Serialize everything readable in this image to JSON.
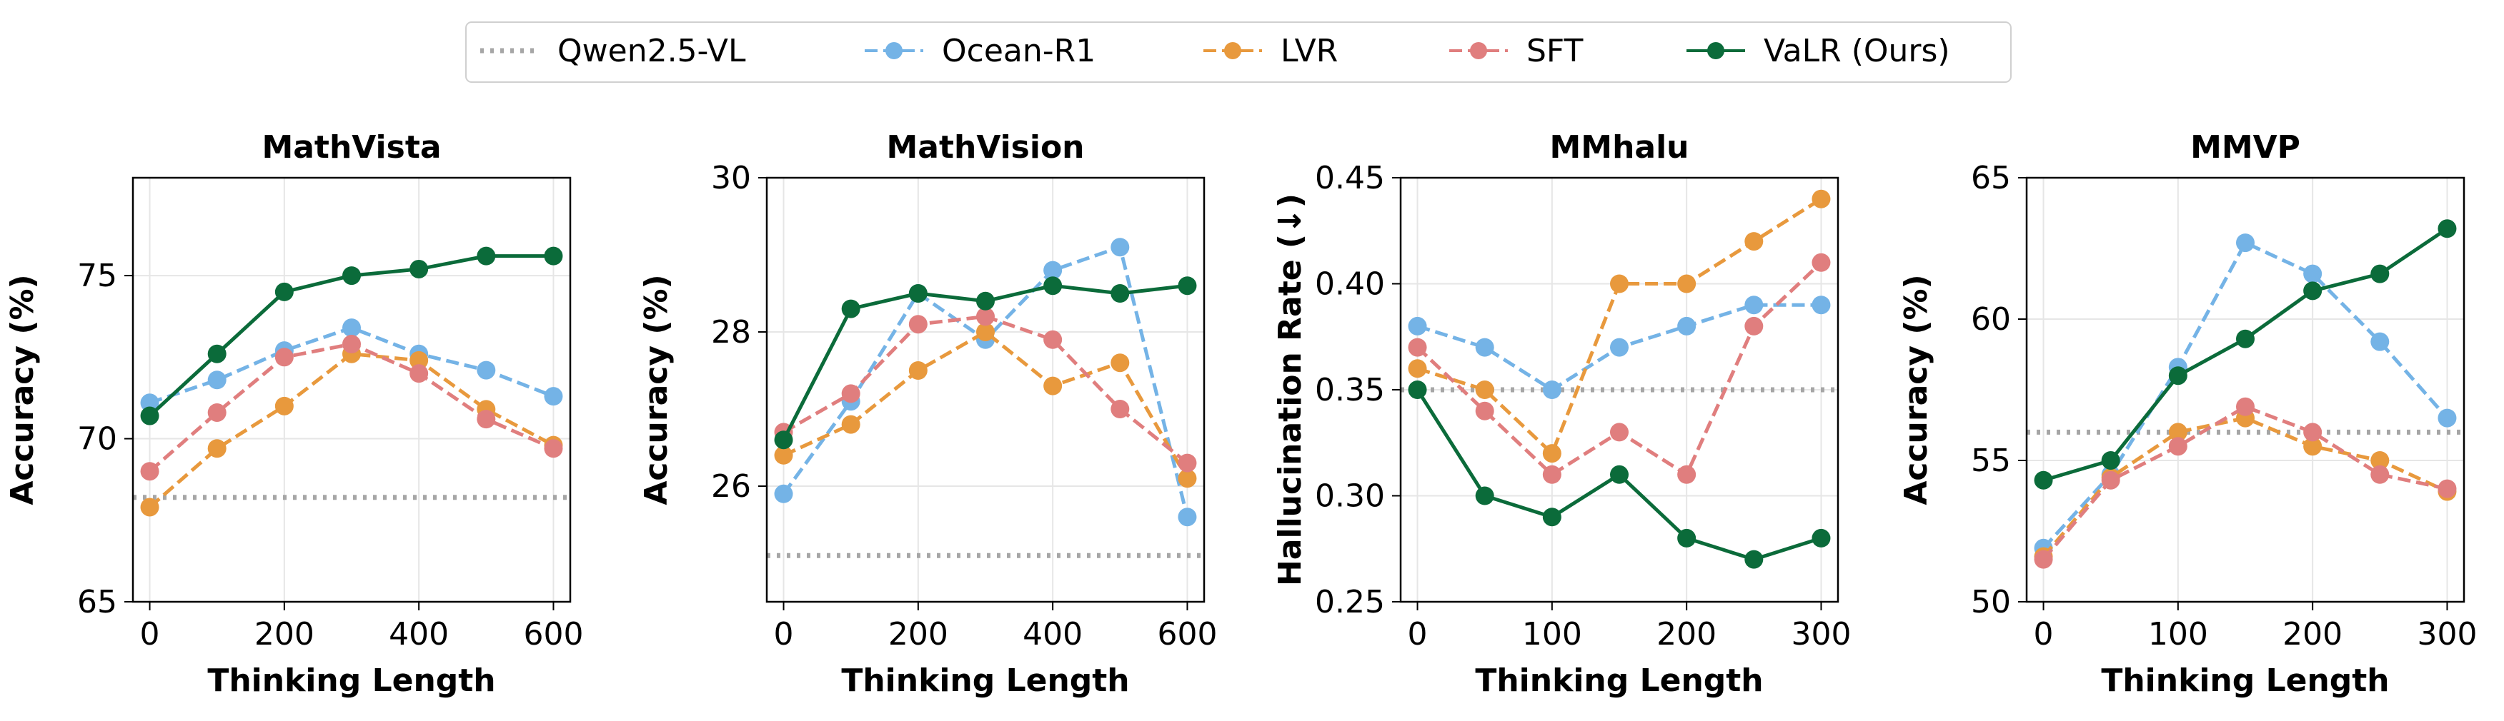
{
  "legend": [
    {
      "key": "qwen",
      "name": "Qwen2.5-VL",
      "color": "#a6a6a6",
      "style": "dotted",
      "marker": false
    },
    {
      "key": "ocean",
      "name": "Ocean-R1",
      "color": "#74b3e6",
      "style": "dashed",
      "marker": true
    },
    {
      "key": "lvr",
      "name": "LVR",
      "color": "#e8993d",
      "style": "dashed",
      "marker": true
    },
    {
      "key": "sft",
      "name": "SFT",
      "color": "#e07e7e",
      "style": "dashed",
      "marker": true
    },
    {
      "key": "valr",
      "name": "VaLR (Ours)",
      "color": "#0b6b3a",
      "style": "solid",
      "marker": true
    }
  ],
  "chart_data": [
    {
      "type": "line",
      "title": "MathVista",
      "xlabel": "Thinking Length",
      "ylabel": "Accuracy (%)",
      "xlim": [
        -25,
        625
      ],
      "ylim": [
        65,
        78
      ],
      "xticks": [
        0,
        200,
        400,
        600
      ],
      "yticks": [
        65,
        70,
        75
      ],
      "x": [
        0,
        100,
        200,
        300,
        400,
        500,
        600
      ],
      "baseline": {
        "key": "qwen",
        "name": "Qwen2.5-VL",
        "value": 68.2
      },
      "series": [
        {
          "key": "ocean",
          "name": "Ocean-R1",
          "values": [
            71.1,
            71.8,
            72.7,
            73.4,
            72.6,
            72.1,
            71.3
          ]
        },
        {
          "key": "lvr",
          "name": "LVR",
          "values": [
            67.9,
            69.7,
            71.0,
            72.6,
            72.4,
            70.9,
            69.8
          ]
        },
        {
          "key": "sft",
          "name": "SFT",
          "values": [
            69.0,
            70.8,
            72.5,
            72.9,
            72.0,
            70.6,
            69.7
          ]
        },
        {
          "key": "valr",
          "name": "VaLR (Ours)",
          "values": [
            70.7,
            72.6,
            74.5,
            75.0,
            75.2,
            75.6,
            75.6
          ]
        }
      ]
    },
    {
      "type": "line",
      "title": "MathVision",
      "xlabel": "Thinking Length",
      "ylabel": "Accuracy (%)",
      "xlim": [
        -25,
        625
      ],
      "ylim": [
        24.5,
        30
      ],
      "xticks": [
        0,
        200,
        400,
        600
      ],
      "yticks": [
        26,
        28,
        30
      ],
      "x": [
        0,
        100,
        200,
        300,
        400,
        500,
        600
      ],
      "baseline": {
        "key": "qwen",
        "name": "Qwen2.5-VL",
        "value": 25.1
      },
      "series": [
        {
          "key": "ocean",
          "name": "Ocean-R1",
          "values": [
            25.9,
            27.1,
            28.5,
            27.9,
            28.8,
            29.1,
            25.6
          ]
        },
        {
          "key": "lvr",
          "name": "LVR",
          "values": [
            26.4,
            26.8,
            27.5,
            28.0,
            27.3,
            27.6,
            26.1
          ]
        },
        {
          "key": "sft",
          "name": "SFT",
          "values": [
            26.7,
            27.2,
            28.1,
            28.2,
            27.9,
            27.0,
            26.3
          ]
        },
        {
          "key": "valr",
          "name": "VaLR (Ours)",
          "values": [
            26.6,
            28.3,
            28.5,
            28.4,
            28.6,
            28.5,
            28.6
          ]
        }
      ]
    },
    {
      "type": "line",
      "title": "MMhalu",
      "xlabel": "Thinking Length",
      "ylabel": "Hallucination Rate (↓)",
      "xlim": [
        -12.5,
        312.5
      ],
      "ylim": [
        0.25,
        0.45
      ],
      "xticks": [
        0,
        100,
        200,
        300
      ],
      "yticks": [
        0.25,
        0.3,
        0.35,
        0.4,
        0.45
      ],
      "ytick_labels": [
        "0.25",
        "0.30",
        "0.35",
        "0.40",
        "0.45"
      ],
      "x": [
        0,
        50,
        100,
        150,
        200,
        250,
        300
      ],
      "baseline": {
        "key": "qwen",
        "name": "Qwen2.5-VL",
        "value": 0.35
      },
      "series": [
        {
          "key": "ocean",
          "name": "Ocean-R1",
          "values": [
            0.38,
            0.37,
            0.35,
            0.37,
            0.38,
            0.39,
            0.39
          ]
        },
        {
          "key": "lvr",
          "name": "LVR",
          "values": [
            0.36,
            0.35,
            0.32,
            0.4,
            0.4,
            0.42,
            0.44
          ]
        },
        {
          "key": "sft",
          "name": "SFT",
          "values": [
            0.37,
            0.34,
            0.31,
            0.33,
            0.31,
            0.38,
            0.41
          ]
        },
        {
          "key": "valr",
          "name": "VaLR (Ours)",
          "values": [
            0.35,
            0.3,
            0.29,
            0.31,
            0.28,
            0.27,
            0.28
          ]
        }
      ]
    },
    {
      "type": "line",
      "title": "MMVP",
      "xlabel": "Thinking Length",
      "ylabel": "Accuracy (%)",
      "xlim": [
        -12.5,
        312.5
      ],
      "ylim": [
        50,
        65
      ],
      "xticks": [
        0,
        100,
        200,
        300
      ],
      "yticks": [
        50,
        55,
        60,
        65
      ],
      "x": [
        0,
        50,
        100,
        150,
        200,
        250,
        300
      ],
      "baseline": {
        "key": "qwen",
        "name": "Qwen2.5-VL",
        "value": 56.0
      },
      "series": [
        {
          "key": "ocean",
          "name": "Ocean-R1",
          "values": [
            51.9,
            54.5,
            58.3,
            62.7,
            61.6,
            59.2,
            56.5
          ]
        },
        {
          "key": "lvr",
          "name": "LVR",
          "values": [
            51.6,
            54.4,
            56.0,
            56.5,
            55.5,
            55.0,
            53.9
          ]
        },
        {
          "key": "sft",
          "name": "SFT",
          "values": [
            51.5,
            54.3,
            55.5,
            56.9,
            56.0,
            54.5,
            54.0
          ]
        },
        {
          "key": "valr",
          "name": "VaLR (Ours)",
          "values": [
            54.3,
            55.0,
            58.0,
            59.3,
            61.0,
            61.6,
            63.2
          ]
        }
      ]
    }
  ]
}
